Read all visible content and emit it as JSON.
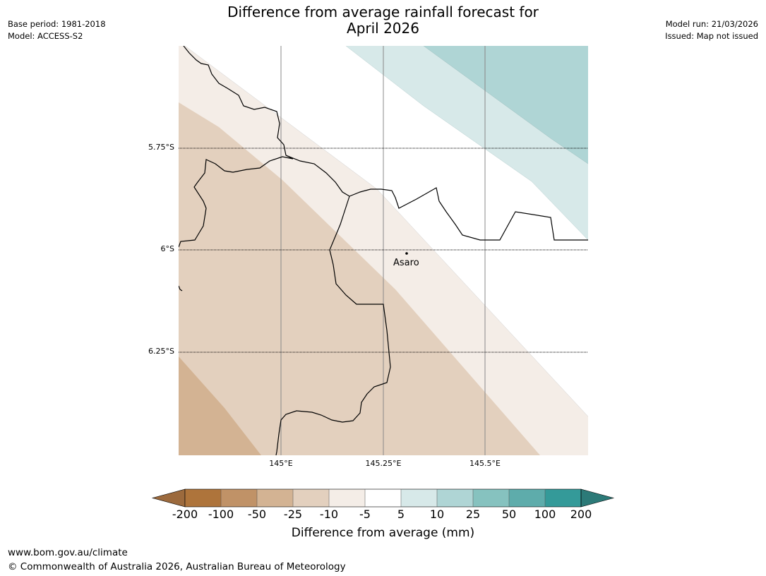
{
  "title_line1": "Difference from average rainfall forecast for",
  "title_line2": "April 2026",
  "base_period": "Base period: 1981-2018",
  "model": "Model: ACCESS-S2",
  "model_run": "Model run: 21/03/2026",
  "issued": "Issued: Map not issued",
  "lat_labels": [
    "5.75°S",
    "6°S",
    "6.25°S"
  ],
  "lon_labels": [
    "145°E",
    "145.25°E",
    "145.5°E"
  ],
  "place": {
    "name": "Asaro"
  },
  "colorbar": {
    "title": "Difference from average (mm)",
    "ticks": [
      "-200",
      "-100",
      "-50",
      "-25",
      "-10",
      "-5",
      "5",
      "10",
      "25",
      "50",
      "100",
      "200"
    ],
    "colors": [
      "#9c6a3d",
      "#ae743b",
      "#c09267",
      "#d3b393",
      "#e3d0be",
      "#f4ede7",
      "#ffffff",
      "#d7e9e9",
      "#afd5d5",
      "#86c2bf",
      "#5eacab",
      "#349a99",
      "#2c7a78"
    ]
  },
  "footer_url": "www.bom.gov.au/climate",
  "footer_copyright": "© Commonwealth of Australia 2026, Australian Bureau of Meteorology"
}
